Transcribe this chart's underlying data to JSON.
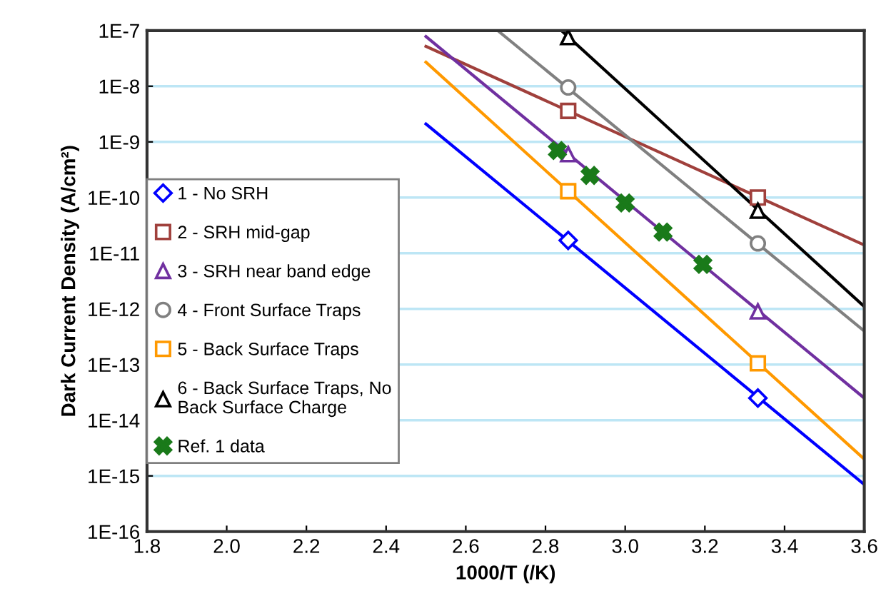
{
  "chart_data": {
    "type": "line",
    "xlabel": "1000/T (/K)",
    "ylabel": "Dark Current Density (A/cm²)",
    "log": "y",
    "grid": "y",
    "legend": "center left",
    "xlim": [
      1.8,
      3.6
    ],
    "ylim": [
      1e-16,
      1e-07
    ],
    "xticks": [
      {
        "value": 1.8,
        "label": "1.8"
      },
      {
        "value": 2.0,
        "label": "2.0"
      },
      {
        "value": 2.2,
        "label": "2.2"
      },
      {
        "value": 2.4,
        "label": "2.4"
      },
      {
        "value": 2.6,
        "label": "2.6"
      },
      {
        "value": 2.8,
        "label": "2.8"
      },
      {
        "value": 3.0,
        "label": "3.0"
      },
      {
        "value": 3.2,
        "label": "3.2"
      },
      {
        "value": 3.4,
        "label": "3.4"
      },
      {
        "value": 3.6,
        "label": "3.6"
      }
    ],
    "yticks": [
      {
        "value": 1e-16,
        "label": "1E-16"
      },
      {
        "value": 1e-15,
        "label": "1E-15"
      },
      {
        "value": 1e-14,
        "label": "1E-14"
      },
      {
        "value": 1e-13,
        "label": "1E-13"
      },
      {
        "value": 1e-12,
        "label": "1E-12"
      },
      {
        "value": 1e-11,
        "label": "1E-11"
      },
      {
        "value": 1e-10,
        "label": "1E-10"
      },
      {
        "value": 1e-09,
        "label": "1E-9"
      },
      {
        "value": 1e-08,
        "label": "1E-8"
      },
      {
        "value": 1e-07,
        "label": "1E-7"
      }
    ],
    "series": [
      {
        "color": "#0000ff",
        "x": [
          2.5,
          3.6
        ],
        "values": [
          2.1e-09,
          7e-16
        ]
      },
      {
        "color": "#a0403c",
        "x": [
          2.5,
          3.6
        ],
        "values": [
          5.2e-08,
          1.4e-11
        ]
      },
      {
        "color": "#7030a0",
        "x": [
          2.5,
          3.6
        ],
        "values": [
          7.8e-08,
          2.5e-14
        ]
      },
      {
        "color": "#808080",
        "x": [
          2.68,
          3.6
        ],
        "values": [
          1e-07,
          4e-13
        ]
      },
      {
        "color": "#ff9900",
        "x": [
          2.5,
          3.6
        ],
        "values": [
          2.7e-08,
          2e-15
        ]
      },
      {
        "color": "#000000",
        "x": [
          2.84,
          3.6
        ],
        "values": [
          1e-07,
          1.1e-12
        ]
      },
      {
        "type": "scatter",
        "name": "1 - No SRH",
        "color": "#0000ff",
        "marker": "diamond",
        "x": [
          2.857,
          3.333
        ],
        "values": [
          1.7e-11,
          2.5e-14
        ]
      },
      {
        "type": "scatter",
        "name": "2 - SRH mid-gap",
        "color": "#a0403c",
        "marker": "square",
        "x": [
          2.857,
          3.333
        ],
        "values": [
          3.6e-09,
          1e-10
        ]
      },
      {
        "type": "scatter",
        "name": "3 - SRH near band edge",
        "color": "#7030a0",
        "marker": "triangle",
        "x": [
          2.857,
          3.333
        ],
        "values": [
          6e-10,
          9e-13
        ]
      },
      {
        "type": "scatter",
        "name": "4 - Front Surface Traps",
        "color": "#808080",
        "marker": "circle",
        "x": [
          2.857,
          3.333
        ],
        "values": [
          9.5e-09,
          1.5e-11
        ]
      },
      {
        "type": "scatter",
        "name": "5 - Back Surface Traps",
        "color": "#ff9900",
        "marker": "square",
        "x": [
          2.857,
          3.333
        ],
        "values": [
          1.3e-10,
          1.05e-13
        ]
      },
      {
        "type": "scatter",
        "name": "6 - Back Surface Traps, No\nBack Surface Charge",
        "color": "#000000",
        "marker": "triangle",
        "x": [
          2.857,
          3.333
        ],
        "values": [
          7.6e-08,
          5.8e-11
        ]
      },
      {
        "type": "scatter",
        "name": "Ref. 1 data",
        "color": "#1a7a1a",
        "marker": "cross",
        "x": [
          2.83,
          2.912,
          3.0,
          3.095,
          3.195
        ],
        "values": [
          7e-10,
          2.5e-10,
          8e-11,
          2.4e-11,
          6.3e-12
        ]
      }
    ]
  }
}
